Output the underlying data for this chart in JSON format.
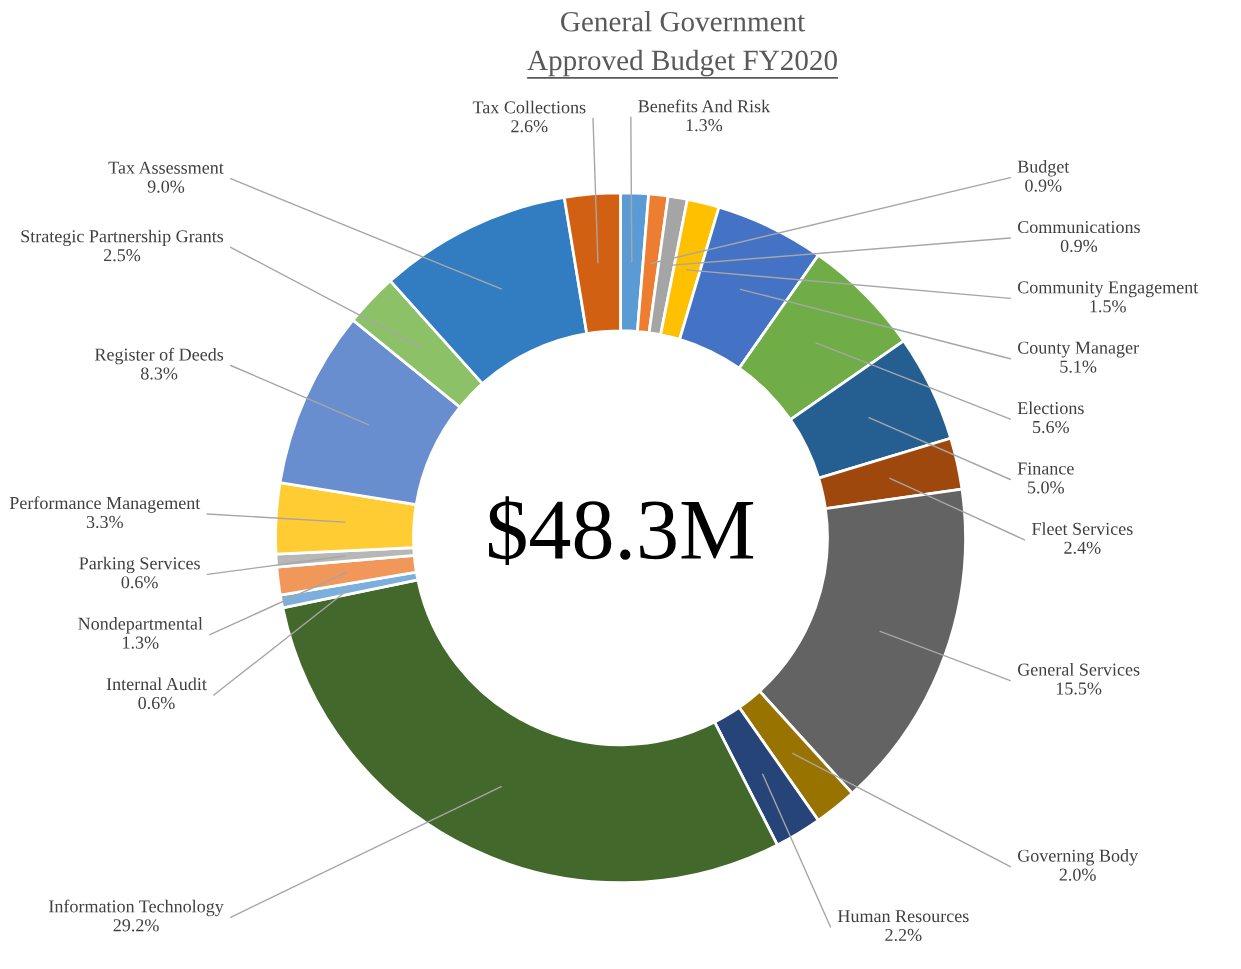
{
  "chart_data": {
    "type": "donut",
    "title": "General Government",
    "subtitle": "Approved Budget FY2020",
    "categories": [
      "Benefits And Risk",
      "Budget",
      "Communications",
      "Community Engagement",
      "County Manager",
      "Elections",
      "Finance",
      "Fleet Services",
      "General Services",
      "Governing Body",
      "Human Resources",
      "Information Technology",
      "Internal Audit",
      "Nondepartmental",
      "Parking Services",
      "Performance Management",
      "Register of Deeds",
      "Strategic Partnership Grants",
      "Tax Assessment",
      "Tax Collections"
    ],
    "values": [
      1.3,
      0.9,
      0.9,
      1.5,
      5.1,
      5.6,
      5.0,
      2.4,
      15.5,
      2.0,
      2.2,
      29.2,
      0.6,
      1.3,
      0.6,
      3.3,
      8.3,
      2.5,
      9.0,
      2.6
    ],
    "value_labels": [
      "1.3%",
      "0.9%",
      "0.9%",
      "1.5%",
      "5.1%",
      "5.6%",
      "5.0%",
      "2.4%",
      "15.5%",
      "2.0%",
      "2.2%",
      "29.2%",
      "0.6%",
      "1.3%",
      "0.6%",
      "3.3%",
      "8.3%",
      "2.5%",
      "9.0%",
      "2.6%"
    ],
    "colors": [
      "#5b9bd5",
      "#ed7d31",
      "#a5a5a5",
      "#ffc000",
      "#4472c4",
      "#70ad47",
      "#255e91",
      "#9e480e",
      "#636363",
      "#997300",
      "#264478",
      "#43682b",
      "#7cafdd",
      "#f1975a",
      "#b7b7b7",
      "#ffcd33",
      "#698ed0",
      "#8cc168",
      "#327dc2",
      "#d26012"
    ],
    "annotations": [
      "$48.3M"
    ]
  }
}
